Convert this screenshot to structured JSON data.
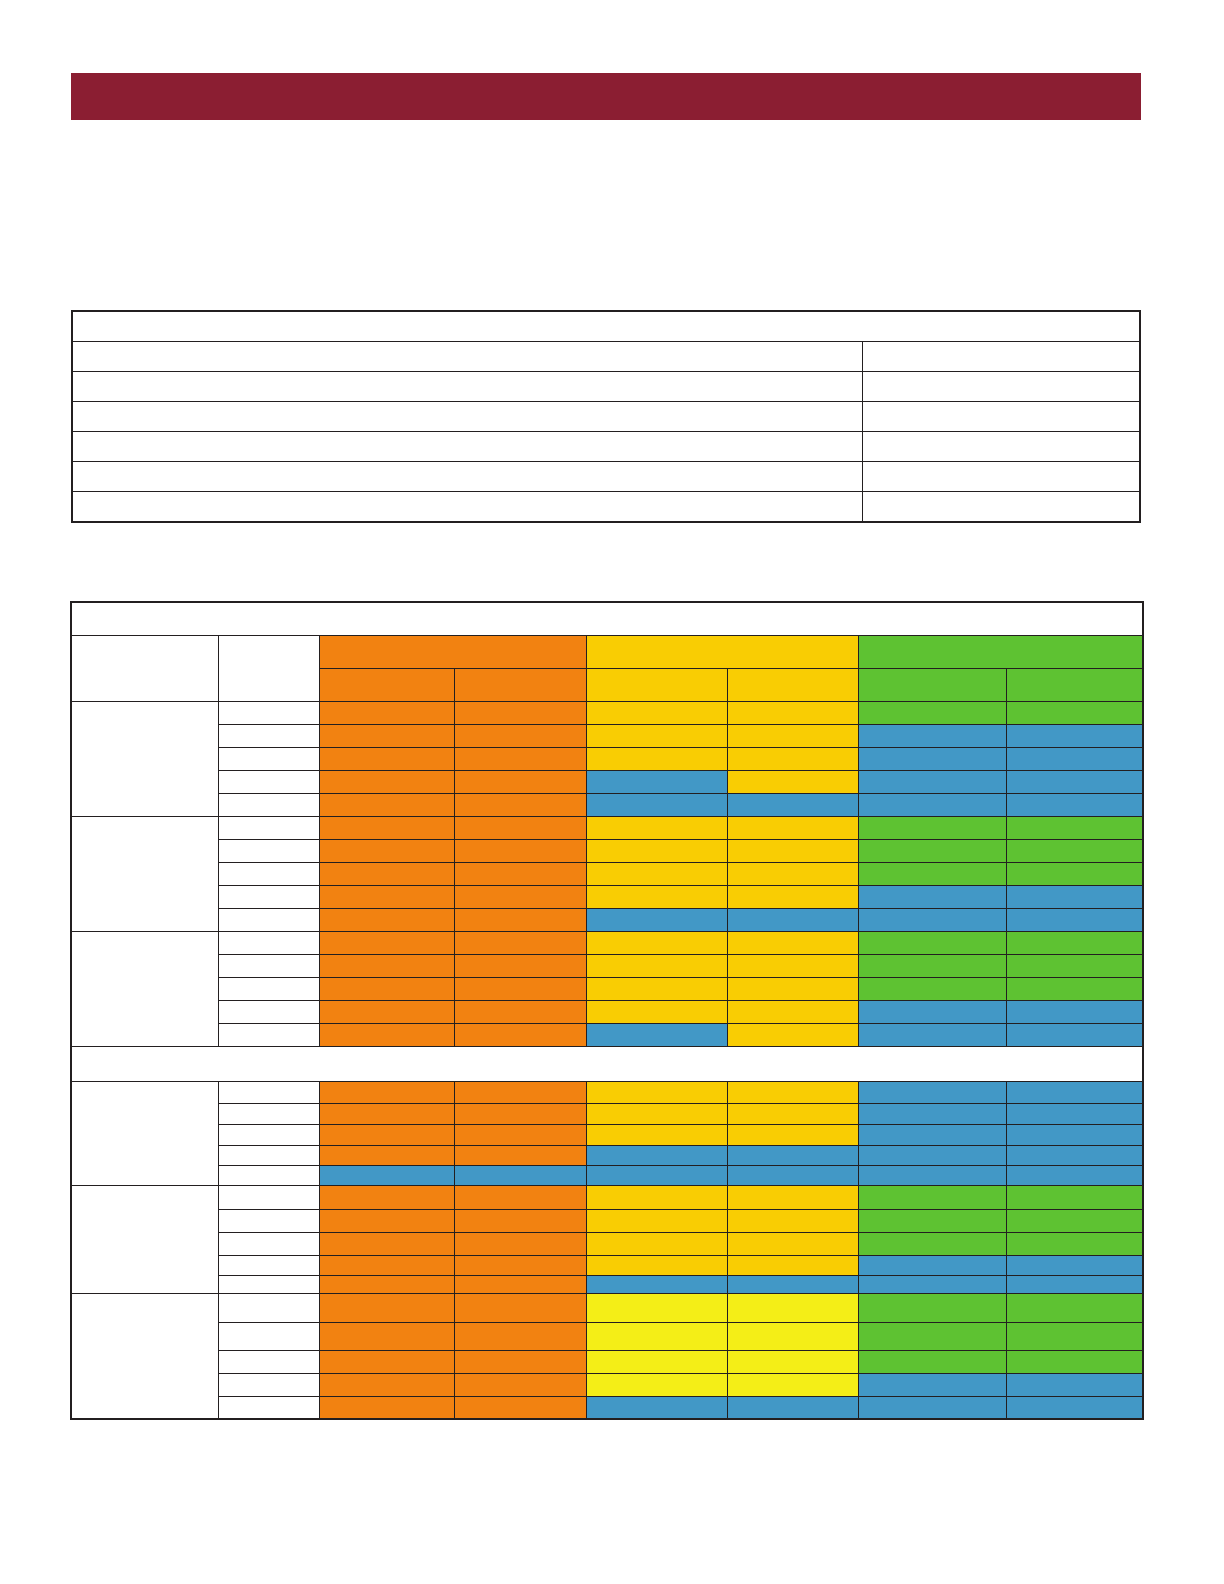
{
  "colors": {
    "banner": "#8b1e32",
    "orange": "#f28211",
    "yellow": "#f9cd03",
    "light_yellow": "#f4ee17",
    "green": "#5ec232",
    "blue": "#4298c6",
    "border": "#231f20"
  },
  "summary_table": {
    "rows": 6,
    "columns": 2
  },
  "color_grid": {
    "column_groups": [
      "orange",
      "yellow",
      "green"
    ],
    "sections": [
      {
        "groups": [
          {
            "rows": [
              [
                "o",
                "o",
                "y",
                "y",
                "g",
                "g"
              ],
              [
                "o",
                "o",
                "y",
                "y",
                "b",
                "b"
              ],
              [
                "o",
                "o",
                "y",
                "y",
                "b",
                "b"
              ],
              [
                "o",
                "o",
                "b",
                "y",
                "b",
                "b"
              ],
              [
                "o",
                "o",
                "b",
                "b",
                "b",
                "b"
              ]
            ]
          },
          {
            "rows": [
              [
                "o",
                "o",
                "y",
                "y",
                "g",
                "g"
              ],
              [
                "o",
                "o",
                "y",
                "y",
                "g",
                "g"
              ],
              [
                "o",
                "o",
                "y",
                "y",
                "g",
                "g"
              ],
              [
                "o",
                "o",
                "y",
                "y",
                "b",
                "b"
              ],
              [
                "o",
                "o",
                "b",
                "b",
                "b",
                "b"
              ]
            ]
          },
          {
            "rows": [
              [
                "o",
                "o",
                "y",
                "y",
                "g",
                "g"
              ],
              [
                "o",
                "o",
                "y",
                "y",
                "g",
                "g"
              ],
              [
                "o",
                "o",
                "y",
                "y",
                "g",
                "g"
              ],
              [
                "o",
                "o",
                "y",
                "y",
                "b",
                "b"
              ],
              [
                "o",
                "o",
                "b",
                "y",
                "b",
                "b"
              ]
            ]
          }
        ]
      },
      {
        "groups": [
          {
            "rows": [
              [
                "o",
                "o",
                "y",
                "y",
                "b",
                "b"
              ],
              [
                "o",
                "o",
                "y",
                "y",
                "b",
                "b"
              ],
              [
                "o",
                "o",
                "y",
                "y",
                "b",
                "b"
              ],
              [
                "o",
                "o",
                "b",
                "b",
                "b",
                "b"
              ],
              [
                "b",
                "b",
                "b",
                "b",
                "b",
                "b"
              ]
            ]
          },
          {
            "rows": [
              [
                "o",
                "o",
                "y",
                "y",
                "g",
                "g"
              ],
              [
                "o",
                "o",
                "y",
                "y",
                "g",
                "g"
              ],
              [
                "o",
                "o",
                "y",
                "y",
                "g",
                "g"
              ],
              [
                "o",
                "o",
                "y",
                "y",
                "b",
                "b"
              ],
              [
                "o",
                "o",
                "b",
                "b",
                "b",
                "b"
              ]
            ]
          },
          {
            "rows": [
              [
                "o",
                "o",
                "ly",
                "ly",
                "g",
                "g"
              ],
              [
                "o",
                "o",
                "ly",
                "ly",
                "g",
                "g"
              ],
              [
                "o",
                "o",
                "ly",
                "ly",
                "g",
                "g"
              ],
              [
                "o",
                "o",
                "ly",
                "ly",
                "b",
                "b"
              ],
              [
                "o",
                "o",
                "b",
                "b",
                "b",
                "b"
              ]
            ]
          }
        ]
      }
    ]
  }
}
